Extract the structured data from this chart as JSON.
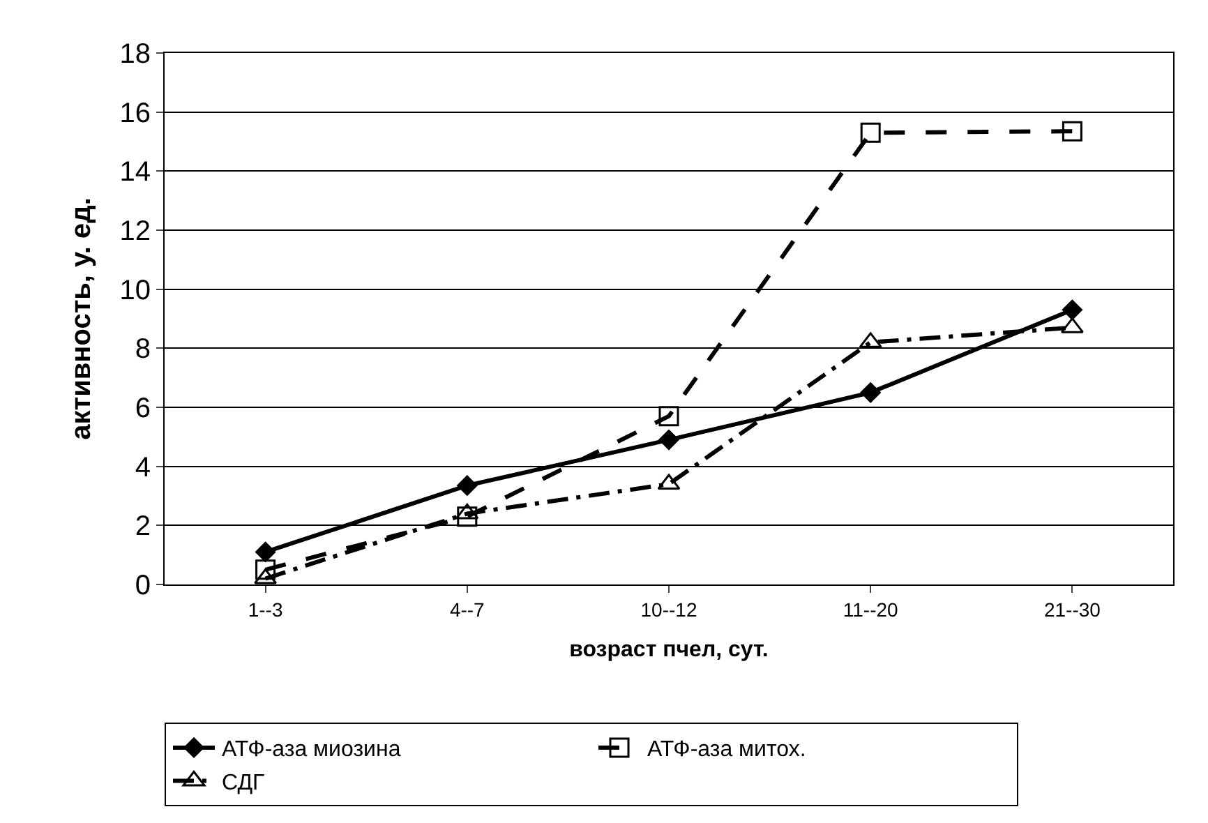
{
  "chart_data": {
    "type": "line",
    "xlabel": "возраст пчел, сут.",
    "ylabel": "активность, у. ед.",
    "categories": [
      "1--3",
      "4--7",
      "10--12",
      "11--20",
      "21--30"
    ],
    "ylim": [
      0,
      18
    ],
    "yticks": [
      0,
      2,
      4,
      6,
      8,
      10,
      12,
      14,
      16,
      18
    ],
    "grid": "y",
    "legend": "bottom",
    "series": [
      {
        "name": "АТФ-аза миозина",
        "color": "#000000",
        "marker": "diamond",
        "line_style": "solid",
        "values": [
          1.1,
          3.35,
          4.9,
          6.5,
          9.3
        ]
      },
      {
        "name": "АТФ-аза митох.",
        "color": "#000000",
        "marker": "square",
        "line_style": "dashed",
        "values": [
          0.5,
          2.3,
          5.7,
          15.3,
          15.35
        ]
      },
      {
        "name": "СДГ",
        "color": "#000000",
        "marker": "triangle",
        "line_style": "dashdot",
        "values": [
          0.2,
          2.4,
          3.4,
          8.2,
          8.7
        ]
      }
    ]
  }
}
